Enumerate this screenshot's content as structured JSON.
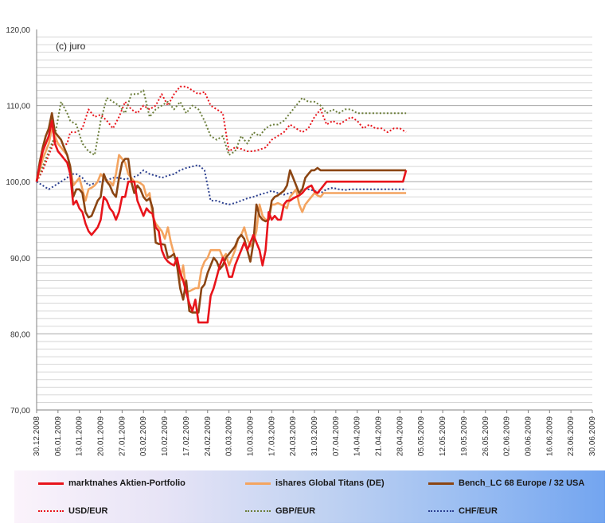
{
  "chart_data": {
    "type": "line",
    "annotation": "(c) juro",
    "y_ticks": [
      "70,00",
      "80,00",
      "90,00",
      "100,00",
      "110,00",
      "120,00"
    ],
    "ylim": [
      70,
      120
    ],
    "x_ticks": [
      "30.12.2008",
      "06.01.2009",
      "13.01.2009",
      "20.01.2009",
      "27.01.2009",
      "03.02.2009",
      "10.02.2009",
      "17.02.2009",
      "24.02.2009",
      "03.03.2009",
      "10.03.2009",
      "17.03.2009",
      "24.03.2009",
      "31.03.2009",
      "07.04.2009",
      "14.04.2009",
      "21.04.2009",
      "28.04.2009",
      "05.05.2009",
      "12.05.2009",
      "19.05.2009",
      "26.05.2009",
      "02.06.2009",
      "09.06.2009",
      "16.06.2009",
      "23.06.2009",
      "30.06.2009"
    ],
    "x_range_days": [
      0,
      182
    ],
    "grid": "horizontal",
    "legend_position": "bottom",
    "series": [
      {
        "name": "marktnahes Aktien-Portfolio",
        "color": "#e8141b",
        "dash": "solid",
        "x": [
          0,
          1,
          2,
          3,
          4,
          5,
          6,
          7,
          8,
          9,
          10,
          11,
          12,
          13,
          14,
          15,
          16,
          17,
          18,
          19,
          20,
          21,
          22,
          23,
          24,
          25,
          26,
          27,
          28,
          29,
          30,
          31,
          32,
          33,
          34,
          35,
          36,
          37,
          38,
          39,
          40,
          41,
          42,
          43,
          44,
          45,
          46,
          47,
          48,
          49,
          50,
          51,
          52,
          53,
          54,
          55,
          56,
          57,
          58,
          59,
          60,
          61,
          62,
          63,
          64,
          65,
          66,
          67,
          68,
          69,
          70,
          71,
          72,
          73,
          74,
          75,
          76,
          77,
          78,
          79,
          80,
          81,
          82,
          83,
          84,
          85,
          86,
          87,
          88,
          89,
          90,
          91,
          92,
          93,
          94,
          95,
          96,
          97,
          98,
          99,
          100,
          101,
          102,
          103,
          104,
          105,
          106,
          107,
          108,
          109,
          110,
          111,
          112,
          113,
          114,
          115,
          116,
          117,
          118,
          119,
          120,
          121
        ],
        "y": [
          100,
          102,
          104,
          105,
          106,
          108,
          105,
          104,
          103.5,
          103,
          102.5,
          101,
          97,
          97.5,
          96.5,
          96,
          94.5,
          93.5,
          93,
          93.5,
          94,
          95,
          98,
          97.5,
          96.5,
          96,
          95,
          96,
          98,
          98,
          100,
          100,
          100,
          97.5,
          96.5,
          95.5,
          96.5,
          96,
          95.8,
          94,
          93.5,
          91,
          90,
          89.5,
          89.2,
          89,
          90,
          88,
          87,
          85.5,
          84,
          83,
          84.5,
          81.5,
          81.5,
          81.5,
          81.5,
          85,
          86,
          87.5,
          89,
          90,
          89,
          87.5,
          87.5,
          89,
          90,
          91,
          92,
          91,
          92,
          93,
          92,
          91,
          89,
          91,
          96,
          95,
          95.5,
          95,
          95,
          97,
          97.5,
          97.5,
          97.8,
          98,
          98.2,
          98.5,
          99,
          99.3,
          99.5,
          98.7,
          98.5,
          99,
          99.5,
          100,
          100,
          100,
          100,
          100,
          100,
          100,
          100,
          100,
          100,
          100,
          100,
          100,
          100,
          100,
          100,
          100,
          100,
          100,
          100,
          100,
          100,
          100,
          100,
          100,
          100,
          101.5
        ]
      },
      {
        "name": "ishares Global Titans (DE)",
        "color": "#f4a460",
        "dash": "solid",
        "x": [
          0,
          1,
          2,
          3,
          4,
          5,
          6,
          7,
          8,
          9,
          10,
          11,
          12,
          13,
          14,
          15,
          16,
          17,
          18,
          19,
          20,
          21,
          22,
          23,
          24,
          25,
          26,
          27,
          28,
          29,
          30,
          31,
          32,
          33,
          34,
          35,
          36,
          37,
          38,
          39,
          40,
          41,
          42,
          43,
          44,
          45,
          46,
          47,
          48,
          49,
          50,
          51,
          52,
          53,
          54,
          55,
          56,
          57,
          58,
          59,
          60,
          61,
          62,
          63,
          64,
          65,
          66,
          67,
          68,
          69,
          70,
          71,
          72,
          73,
          74,
          75,
          76,
          77,
          78,
          79,
          80,
          81,
          82,
          83,
          84,
          85,
          86,
          87,
          88,
          89,
          90,
          91,
          92,
          93,
          94,
          95,
          96,
          97,
          98,
          99,
          100,
          101,
          102,
          103,
          104,
          105,
          106,
          107,
          108,
          109,
          110,
          111,
          112,
          113,
          114,
          115,
          116,
          117,
          118,
          119,
          120,
          121
        ],
        "y": [
          100,
          101.5,
          103,
          104,
          105,
          107,
          106,
          105,
          104.5,
          104,
          103.5,
          102,
          99.5,
          100,
          100.5,
          99,
          97.5,
          99,
          99.2,
          99.5,
          100,
          101,
          100.5,
          100,
          100,
          99.5,
          101,
          103.5,
          103,
          102.5,
          101,
          100.5,
          100,
          100,
          99.8,
          99.5,
          98,
          98.5,
          95.5,
          94.5,
          94,
          93.5,
          92.5,
          94,
          92,
          90.5,
          89,
          87,
          89,
          85.5,
          85.6,
          85.8,
          86,
          86,
          88.5,
          89.5,
          90,
          91,
          91,
          91,
          91,
          90,
          90.5,
          89,
          90,
          91,
          92.5,
          93,
          94,
          92.5,
          91.5,
          92,
          93.5,
          97,
          95.5,
          95,
          95,
          97,
          97,
          97.2,
          97,
          96.8,
          96.5,
          98,
          98.5,
          99,
          97,
          96,
          97,
          97.5,
          98,
          98.5,
          98.2,
          98,
          98.5,
          98.5,
          98.5,
          98.5,
          98.5,
          98.5,
          98.5,
          98.5,
          98.5,
          98.5,
          98.5,
          98.5,
          98.5,
          98.5,
          98.5,
          98.5,
          98.5,
          98.5,
          98.5,
          98.5,
          98.5,
          98.5,
          98.5,
          98.5,
          98.5,
          98.5,
          98.5,
          98.5
        ]
      },
      {
        "name": "Bench_LC  68 Europe / 32 USA",
        "color": "#8b4513",
        "dash": "solid",
        "x": [
          0,
          1,
          2,
          3,
          4,
          5,
          6,
          7,
          8,
          9,
          10,
          11,
          12,
          13,
          14,
          15,
          16,
          17,
          18,
          19,
          20,
          21,
          22,
          23,
          24,
          25,
          26,
          27,
          28,
          29,
          30,
          31,
          32,
          33,
          34,
          35,
          36,
          37,
          38,
          39,
          40,
          41,
          42,
          43,
          44,
          45,
          46,
          47,
          48,
          49,
          50,
          51,
          52,
          53,
          54,
          55,
          56,
          57,
          58,
          59,
          60,
          61,
          62,
          63,
          64,
          65,
          66,
          67,
          68,
          69,
          70,
          71,
          72,
          73,
          74,
          75,
          76,
          77,
          78,
          79,
          80,
          81,
          82,
          83,
          84,
          85,
          86,
          87,
          88,
          89,
          90,
          91,
          92,
          93,
          94,
          95,
          96,
          97,
          98,
          99,
          100,
          101,
          102,
          103,
          104,
          105,
          106,
          107,
          108,
          109,
          110,
          111,
          112,
          113,
          114,
          115,
          116,
          117,
          118,
          119,
          120,
          121
        ],
        "y": [
          100,
          102.5,
          104.5,
          106,
          107,
          109,
          106.5,
          106,
          105.5,
          104.5,
          103.5,
          102,
          98,
          99,
          99,
          98.5,
          96,
          95.3,
          95.5,
          96.5,
          97.5,
          98,
          101,
          100,
          99.5,
          98.5,
          98,
          100.5,
          102.5,
          103,
          103,
          100,
          98.5,
          99.5,
          99,
          98,
          97.5,
          97.8,
          96.5,
          92,
          91.8,
          91.8,
          91.7,
          90,
          90.2,
          90.5,
          89,
          86,
          84.5,
          87,
          83,
          82.8,
          82.8,
          82.8,
          86,
          86.5,
          88,
          89,
          90,
          89.5,
          88.5,
          89,
          90,
          90.5,
          91,
          91.5,
          92.5,
          93,
          92.5,
          91,
          89.5,
          92,
          97,
          95.5,
          95,
          94.8,
          95,
          97.5,
          98,
          98.2,
          98.5,
          98.8,
          99.5,
          101.5,
          100.5,
          99.5,
          98.5,
          99,
          100.5,
          101,
          101.5,
          101.5,
          101.8,
          101.5,
          101.5,
          101.5,
          101.5,
          101.5,
          101.5,
          101.5,
          101.5,
          101.5,
          101.5,
          101.5,
          101.5,
          101.5,
          101.5,
          101.5,
          101.5,
          101.5,
          101.5,
          101.5,
          101.5,
          101.5,
          101.5,
          101.5,
          101.5,
          101.5,
          101.5,
          101.5,
          101.5,
          101.5
        ]
      },
      {
        "name": "USD/EUR",
        "color": "#e8141b",
        "dash": "dotted",
        "x": [
          0,
          2,
          4,
          6,
          8,
          10,
          11,
          13,
          15,
          17,
          19,
          21,
          23,
          25,
          27,
          29,
          31,
          33,
          35,
          37,
          39,
          41,
          43,
          45,
          47,
          49,
          51,
          53,
          55,
          57,
          59,
          61,
          63,
          65,
          67,
          69,
          71,
          73,
          75,
          77,
          79,
          81,
          83,
          85,
          87,
          89,
          91,
          93,
          95,
          97,
          99,
          101,
          103,
          105,
          107,
          109,
          111,
          113,
          115,
          117,
          119,
          121
        ],
        "y": [
          100,
          101.5,
          103.5,
          105.5,
          104.5,
          105,
          106.5,
          106.5,
          107,
          109.5,
          108.5,
          108.8,
          108,
          107,
          108.5,
          110.5,
          109.5,
          109,
          110,
          109.5,
          110,
          111.5,
          110,
          111.5,
          112.5,
          112.5,
          112,
          111.5,
          111.8,
          110,
          109.5,
          109,
          104,
          104.5,
          104.3,
          104,
          104,
          104.2,
          104.5,
          105.5,
          106,
          106.5,
          107.5,
          107,
          106.5,
          107,
          108.5,
          109.5,
          107.5,
          108,
          107.5,
          108,
          108.5,
          108,
          107,
          107.5,
          107,
          107,
          106.5,
          107,
          107,
          106.5
        ]
      },
      {
        "name": "GBP/EUR",
        "color": "#6b7d3a",
        "dash": "dotted",
        "x": [
          0,
          2,
          4,
          6,
          8,
          10,
          11,
          13,
          15,
          17,
          19,
          21,
          23,
          25,
          27,
          29,
          31,
          33,
          35,
          37,
          39,
          41,
          43,
          45,
          47,
          49,
          51,
          53,
          55,
          57,
          59,
          61,
          63,
          65,
          67,
          69,
          71,
          73,
          75,
          77,
          79,
          81,
          83,
          85,
          87,
          89,
          91,
          93,
          95,
          97,
          99,
          101,
          103,
          105,
          107,
          109,
          111,
          113,
          115,
          117,
          119,
          121
        ],
        "y": [
          100,
          102,
          104,
          106,
          110.5,
          109,
          108,
          107.5,
          105,
          104,
          103.5,
          108,
          111,
          110.5,
          110,
          109,
          111.5,
          111.5,
          112,
          108.5,
          109.5,
          110,
          110.5,
          109.5,
          110.5,
          109,
          110,
          109.5,
          108,
          106,
          105.5,
          106,
          103.5,
          104,
          106,
          105,
          106.5,
          106,
          107,
          107.5,
          107.5,
          108,
          109,
          110,
          111,
          110.5,
          110.5,
          110,
          109,
          109.5,
          109,
          109.5,
          109.5,
          109,
          109,
          109,
          109,
          109,
          109,
          109,
          109,
          109
        ]
      },
      {
        "name": "CHF/EUR",
        "color": "#2b3f8f",
        "dash": "dotted",
        "x": [
          0,
          2,
          4,
          6,
          8,
          10,
          11,
          13,
          15,
          17,
          19,
          21,
          23,
          25,
          27,
          29,
          31,
          33,
          35,
          37,
          39,
          41,
          43,
          45,
          47,
          49,
          51,
          53,
          55,
          57,
          59,
          61,
          63,
          65,
          67,
          69,
          71,
          73,
          75,
          77,
          79,
          81,
          83,
          85,
          87,
          89,
          91,
          93,
          95,
          97,
          99,
          101,
          103,
          105,
          107,
          109,
          111,
          113,
          115,
          117,
          119,
          121
        ],
        "y": [
          100,
          99.5,
          99,
          99.5,
          100,
          100.5,
          101,
          101,
          100.5,
          99.5,
          99.8,
          100,
          100.2,
          100.5,
          100.5,
          100.3,
          100.5,
          100.8,
          101.5,
          101,
          100.8,
          100.5,
          100.8,
          101,
          101.5,
          101.8,
          102,
          102.2,
          101.5,
          97.5,
          97.5,
          97.2,
          97,
          97.2,
          97.5,
          97.8,
          98,
          98.3,
          98.5,
          98.8,
          98.5,
          98.3,
          98.5,
          98.8,
          99,
          99,
          98.8,
          98.5,
          99,
          99.2,
          99,
          98.9,
          99,
          99,
          99,
          99,
          99,
          99,
          99,
          99,
          99,
          99
        ]
      }
    ]
  }
}
